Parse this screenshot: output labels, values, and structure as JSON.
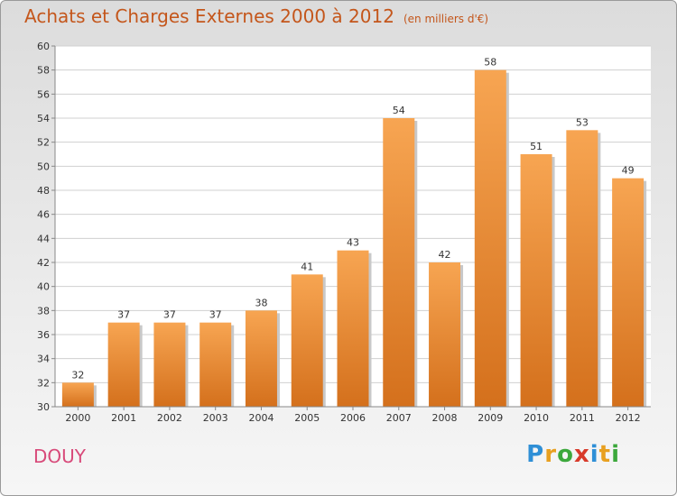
{
  "title": "Achats et Charges Externes 2000 à 2012",
  "unit_label": "(en milliers d'€)",
  "commune": "DOUY",
  "brand": {
    "letters": [
      "P",
      "r",
      "o",
      "x",
      "i",
      "t",
      "i"
    ],
    "colors": [
      "#2f8fd6",
      "#e8a020",
      "#3ca83c",
      "#d83a2a",
      "#2f8fd6",
      "#e8a020",
      "#3ca83c"
    ]
  },
  "colors": {
    "bar_top": "#f7a552",
    "bar_bottom": "#d4701c",
    "title": "#c4561b",
    "commune": "#d84a7a"
  },
  "chart_data": {
    "type": "bar",
    "title": "Achats et Charges Externes 2000 à 2012",
    "categories": [
      "2000",
      "2001",
      "2002",
      "2003",
      "2004",
      "2005",
      "2006",
      "2007",
      "2008",
      "2009",
      "2010",
      "2011",
      "2012"
    ],
    "values": [
      32,
      37,
      37,
      37,
      38,
      41,
      43,
      54,
      42,
      58,
      51,
      53,
      49
    ],
    "ylim": [
      30,
      60
    ],
    "yticks": [
      30,
      32,
      34,
      36,
      38,
      40,
      42,
      44,
      46,
      48,
      50,
      52,
      54,
      56,
      58,
      60
    ],
    "xlabel": "",
    "ylabel": "",
    "grid": true,
    "legend": "none"
  }
}
